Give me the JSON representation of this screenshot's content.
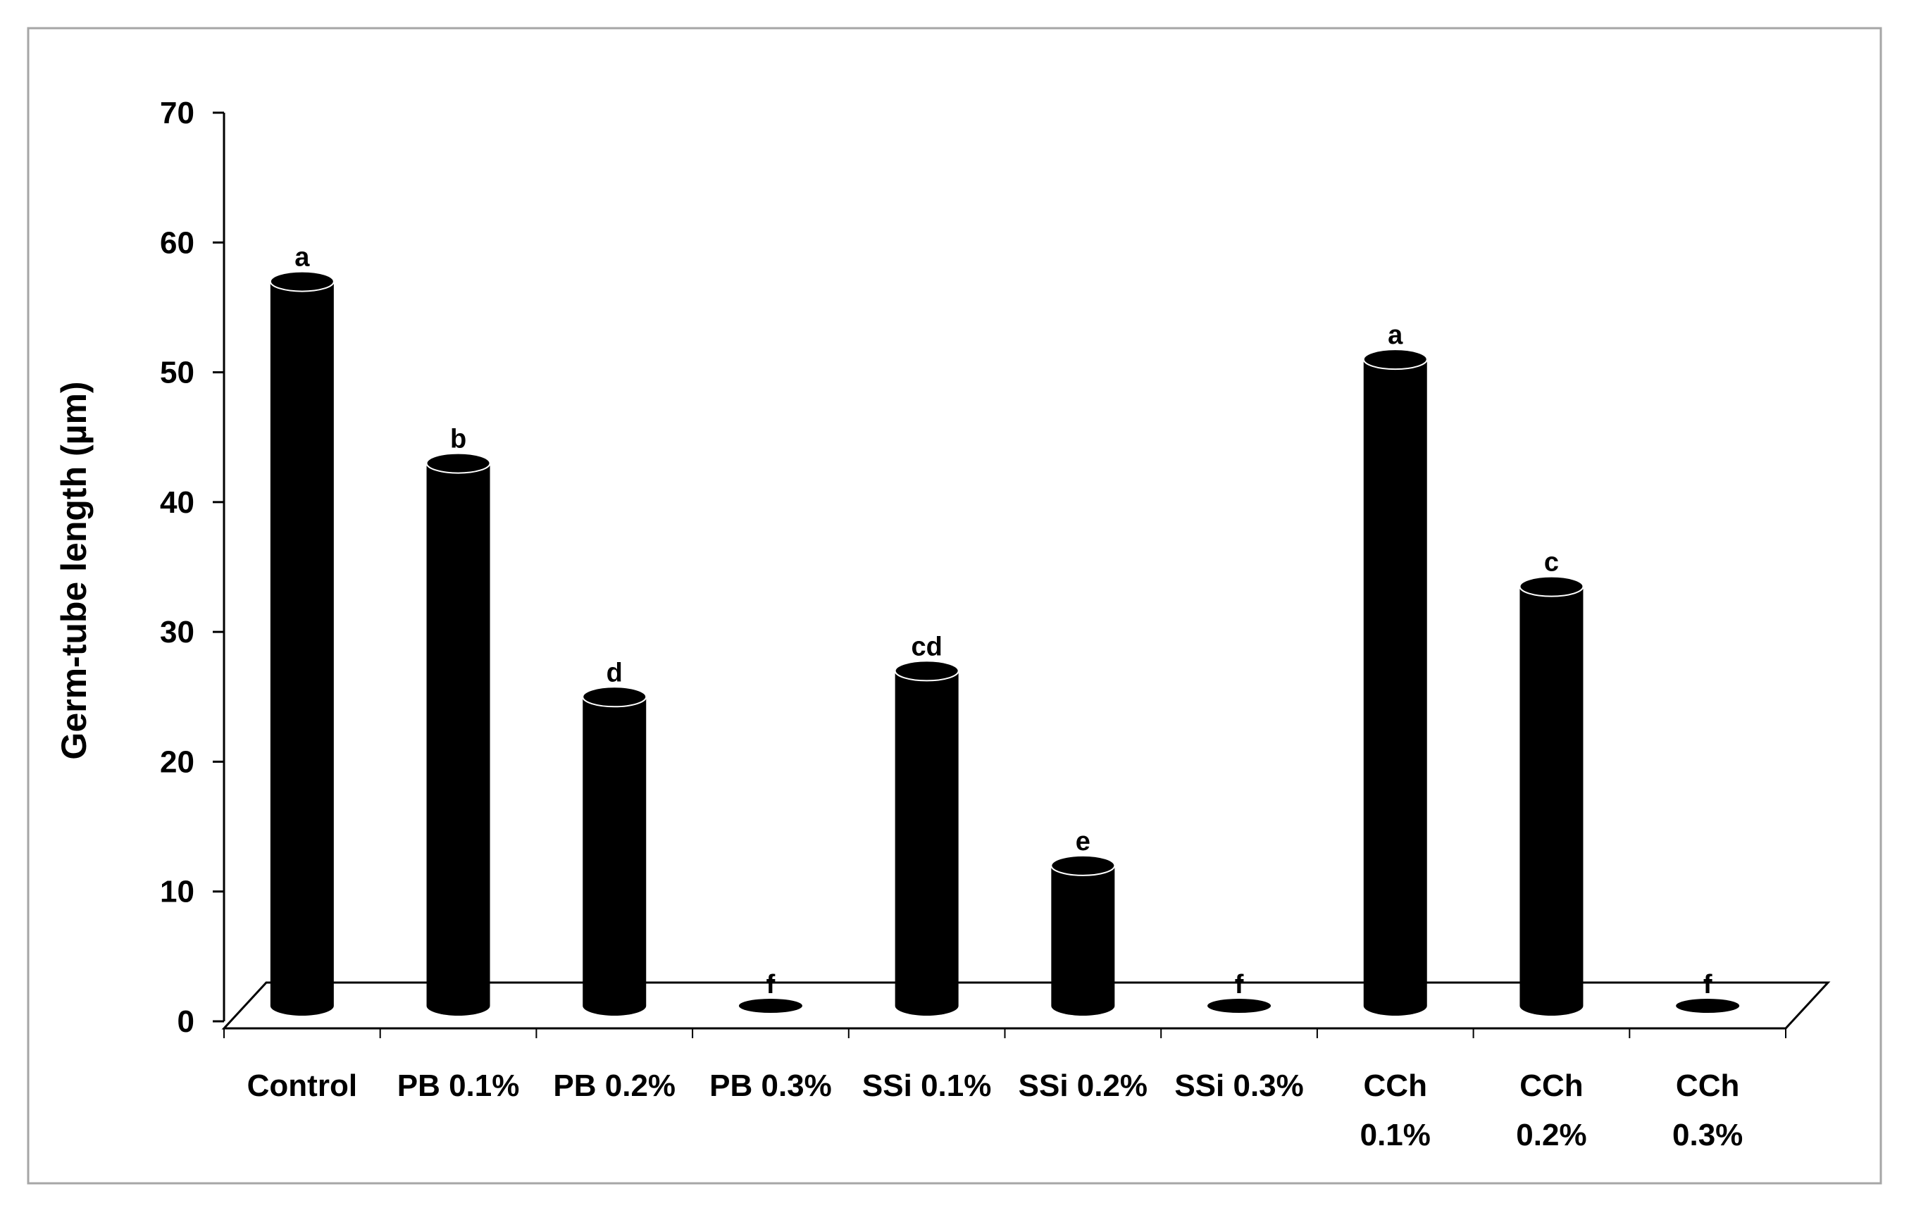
{
  "chart_data": {
    "type": "bar",
    "title": "",
    "xlabel": "",
    "ylabel": "Germ-tube length (µm)",
    "ylim": [
      0,
      70
    ],
    "yticks": [
      0,
      10,
      20,
      30,
      40,
      50,
      60,
      70
    ],
    "grid": false,
    "legend": "none",
    "bar_style": "3d-cylinder",
    "bar_color": "#000000",
    "categories": [
      [
        "Control"
      ],
      [
        "PB 0.1%"
      ],
      [
        "PB 0.2%"
      ],
      [
        "PB 0.3%"
      ],
      [
        "SSi 0.1%"
      ],
      [
        "SSi 0.2%"
      ],
      [
        "SSi 0.3%"
      ],
      [
        "CCh",
        "0.1%"
      ],
      [
        "CCh",
        "0.2%"
      ],
      [
        "CCh",
        "0.3%"
      ]
    ],
    "values": [
      57.0,
      43.0,
      25.0,
      0,
      27.0,
      12.0,
      0,
      51.0,
      33.5,
      0
    ],
    "significance_labels": [
      "a",
      "b",
      "d",
      "f",
      "cd",
      "e",
      "f",
      "a",
      "c",
      "f"
    ]
  }
}
